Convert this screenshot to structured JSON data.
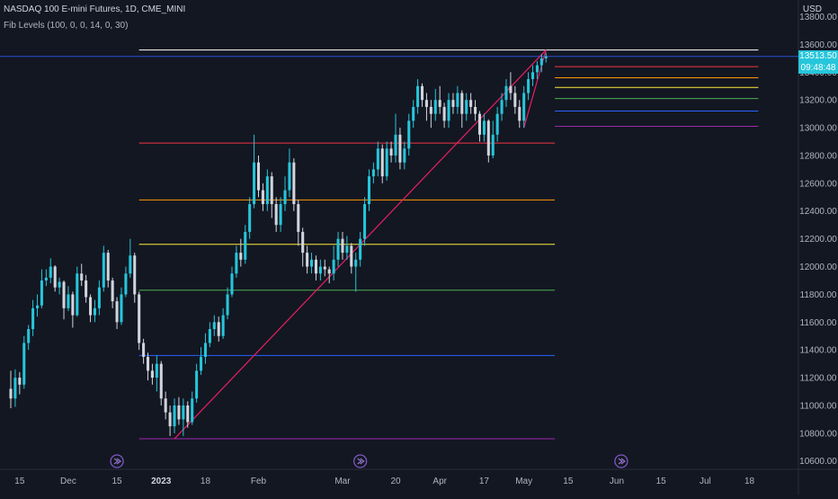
{
  "header": {
    "title": "NASDAQ 100 E-mini Futures, 1D, CME_MINI",
    "indicator": "Fib Levels (100, 0, 0, 14, 0, 30)"
  },
  "price_axis": {
    "currency": "USD",
    "last_price": "13513.50",
    "countdown": "09:48:48"
  },
  "colors": {
    "background": "#131722",
    "candle_up": "#26c6da",
    "candle_down": "#d1d4dc",
    "trend_line": "#e91e63",
    "last_price_line": "#2962ff",
    "price_tag": "#26c6da"
  },
  "chart_data": {
    "type": "candlestick",
    "symbol": "NASDAQ 100 E-mini Futures",
    "interval": "1D",
    "ylim": [
      10540,
      13920
    ],
    "y_ticks": [
      10600,
      10800,
      11000,
      11200,
      11400,
      11600,
      11800,
      12000,
      12200,
      12400,
      12600,
      12800,
      13000,
      13200,
      13400,
      13600,
      13800
    ],
    "x_ticks": [
      {
        "label": "15",
        "bar": -49
      },
      {
        "label": "Dec",
        "bar": -38
      },
      {
        "label": "15",
        "bar": -27
      },
      {
        "label": "2023",
        "bar": -17
      },
      {
        "label": "18",
        "bar": -7
      },
      {
        "label": "Feb",
        "bar": 5
      },
      {
        "label": "Mar",
        "bar": 24
      },
      {
        "label": "20",
        "bar": 36
      },
      {
        "label": "Apr",
        "bar": 46
      },
      {
        "label": "17",
        "bar": 56
      },
      {
        "label": "May",
        "bar": 65
      },
      {
        "label": "15",
        "bar": 75
      },
      {
        "label": "Jun",
        "bar": 86
      },
      {
        "label": "15",
        "bar": 96
      },
      {
        "label": "Jul",
        "bar": 106
      },
      {
        "label": "18",
        "bar": 116
      }
    ],
    "bar_range": [
      -51,
      123
    ],
    "candles": [
      [
        -51,
        11120,
        11050,
        11250,
        10980
      ],
      [
        -50,
        11050,
        11200,
        11260,
        10990
      ],
      [
        -49,
        11200,
        11150,
        11240,
        11080
      ],
      [
        -48,
        11150,
        11450,
        11500,
        11120
      ],
      [
        -47,
        11450,
        11550,
        11580,
        11400
      ],
      [
        -46,
        11550,
        11700,
        11760,
        11500
      ],
      [
        -45,
        11700,
        11720,
        11800,
        11640
      ],
      [
        -44,
        11720,
        11900,
        11980,
        11700
      ],
      [
        -43,
        11900,
        11920,
        11980,
        11860
      ],
      [
        -42,
        11920,
        12000,
        12060,
        11880
      ],
      [
        -41,
        12000,
        11850,
        12010,
        11820
      ],
      [
        -40,
        11850,
        11890,
        11920,
        11800
      ],
      [
        -39,
        11890,
        11700,
        11900,
        11620
      ],
      [
        -38,
        11700,
        11800,
        11860,
        11680
      ],
      [
        -37,
        11800,
        11650,
        11820,
        11560
      ],
      [
        -36,
        11650,
        11950,
        12000,
        11640
      ],
      [
        -35,
        11950,
        11900,
        12020,
        11860
      ],
      [
        -34,
        11900,
        11780,
        11940,
        11740
      ],
      [
        -33,
        11780,
        11650,
        11800,
        11600
      ],
      [
        -32,
        11650,
        11700,
        11760,
        11600
      ],
      [
        -31,
        11700,
        11850,
        11900,
        11650
      ],
      [
        -30,
        11850,
        12100,
        12150,
        11820
      ],
      [
        -29,
        12100,
        11900,
        12120,
        11850
      ],
      [
        -28,
        11900,
        11750,
        11920,
        11700
      ],
      [
        -27,
        11750,
        11600,
        11780,
        11550
      ],
      [
        -26,
        11600,
        11800,
        11850,
        11580
      ],
      [
        -25,
        11800,
        11950,
        12000,
        11780
      ],
      [
        -24,
        11950,
        12080,
        12200,
        11920
      ],
      [
        -23,
        12080,
        11800,
        12100,
        11740
      ],
      [
        -22,
        11800,
        11450,
        11820,
        11400
      ],
      [
        -21,
        11450,
        11350,
        11480,
        11300
      ],
      [
        -20,
        11350,
        11250,
        11380,
        11180
      ],
      [
        -19,
        11250,
        11200,
        11300,
        11150
      ],
      [
        -18,
        11200,
        11300,
        11360,
        11100
      ],
      [
        -17,
        11300,
        11050,
        11320,
        11000
      ],
      [
        -16,
        11050,
        10950,
        11100,
        10900
      ],
      [
        -15,
        10950,
        10850,
        11000,
        10780
      ],
      [
        -14,
        10850,
        11000,
        11050,
        10800
      ],
      [
        -13,
        11000,
        10900,
        11060,
        10860
      ],
      [
        -12,
        10900,
        11000,
        11050,
        10780
      ],
      [
        -11,
        11000,
        10880,
        11030,
        10840
      ],
      [
        -10,
        10880,
        11050,
        11100,
        10860
      ],
      [
        -9,
        11050,
        11250,
        11300,
        11020
      ],
      [
        -8,
        11250,
        11350,
        11420,
        11220
      ],
      [
        -7,
        11350,
        11450,
        11520,
        11300
      ],
      [
        -6,
        11450,
        11550,
        11600,
        11420
      ],
      [
        -5,
        11550,
        11600,
        11650,
        11500
      ],
      [
        -4,
        11600,
        11500,
        11640,
        11460
      ],
      [
        -3,
        11500,
        11650,
        11700,
        11480
      ],
      [
        -2,
        11650,
        11800,
        11850,
        11620
      ],
      [
        -1,
        11800,
        11950,
        12000,
        11780
      ],
      [
        0,
        11950,
        12100,
        12150,
        11920
      ],
      [
        1,
        12100,
        12050,
        12200,
        12000
      ],
      [
        2,
        12050,
        12250,
        12300,
        12020
      ],
      [
        3,
        12250,
        12450,
        12500,
        12200
      ],
      [
        4,
        12450,
        12750,
        12950,
        12420
      ],
      [
        5,
        12750,
        12550,
        12800,
        12500
      ],
      [
        6,
        12550,
        12450,
        12600,
        12400
      ],
      [
        7,
        12450,
        12650,
        12700,
        12400
      ],
      [
        8,
        12650,
        12450,
        12680,
        12350
      ],
      [
        9,
        12450,
        12300,
        12500,
        12250
      ],
      [
        10,
        12300,
        12450,
        12500,
        12250
      ],
      [
        11,
        12450,
        12550,
        12650,
        12400
      ],
      [
        12,
        12550,
        12750,
        12850,
        12500
      ],
      [
        13,
        12750,
        12450,
        12780,
        12400
      ],
      [
        14,
        12450,
        12250,
        12480,
        12150
      ],
      [
        15,
        12250,
        12100,
        12280,
        12000
      ],
      [
        16,
        12100,
        12000,
        12150,
        11950
      ],
      [
        17,
        12000,
        12050,
        12100,
        11950
      ],
      [
        18,
        12050,
        11950,
        12080,
        11900
      ],
      [
        19,
        11950,
        12000,
        12050,
        11900
      ],
      [
        20,
        12000,
        11980,
        12050,
        11930
      ],
      [
        21,
        11980,
        11950,
        12000,
        11880
      ],
      [
        22,
        11950,
        12050,
        12150,
        11900
      ],
      [
        23,
        12050,
        12200,
        12250,
        12000
      ],
      [
        24,
        12200,
        12100,
        12250,
        12050
      ],
      [
        25,
        12100,
        12150,
        12220,
        12050
      ],
      [
        26,
        12150,
        12000,
        12170,
        11950
      ],
      [
        27,
        12000,
        12050,
        12100,
        11820
      ],
      [
        28,
        12050,
        12200,
        12250,
        12000
      ],
      [
        29,
        12200,
        12450,
        12500,
        12150
      ],
      [
        30,
        12450,
        12650,
        12700,
        12400
      ],
      [
        31,
        12650,
        12700,
        12750,
        12600
      ],
      [
        32,
        12700,
        12850,
        12900,
        12650
      ],
      [
        33,
        12850,
        12650,
        12880,
        12600
      ],
      [
        34,
        12650,
        12850,
        12900,
        12620
      ],
      [
        35,
        12850,
        12800,
        12900,
        12750
      ],
      [
        36,
        12800,
        12950,
        13100,
        12750
      ],
      [
        37,
        12950,
        12750,
        13000,
        12700
      ],
      [
        38,
        12750,
        12850,
        12900,
        12700
      ],
      [
        39,
        12850,
        13050,
        13100,
        12800
      ],
      [
        40,
        13050,
        13150,
        13200,
        13000
      ],
      [
        41,
        13150,
        13300,
        13350,
        13100
      ],
      [
        42,
        13300,
        13200,
        13320,
        13150
      ],
      [
        43,
        13200,
        13150,
        13250,
        13050
      ],
      [
        44,
        13150,
        13100,
        13200,
        13000
      ],
      [
        45,
        13100,
        13200,
        13280,
        13050
      ],
      [
        46,
        13200,
        13150,
        13300,
        13100
      ],
      [
        47,
        13150,
        13050,
        13180,
        13000
      ],
      [
        48,
        13050,
        13200,
        13250,
        13000
      ],
      [
        49,
        13200,
        13150,
        13250,
        13100
      ],
      [
        50,
        13150,
        13250,
        13300,
        13100
      ],
      [
        51,
        13250,
        13100,
        13270,
        13000
      ],
      [
        52,
        13100,
        13200,
        13250,
        13050
      ],
      [
        53,
        13200,
        13150,
        13250,
        13100
      ],
      [
        54,
        13150,
        13100,
        13200,
        13050
      ],
      [
        55,
        13100,
        12950,
        13120,
        12900
      ],
      [
        56,
        12950,
        13050,
        13100,
        12900
      ],
      [
        57,
        13050,
        12800,
        13060,
        12750
      ],
      [
        58,
        12800,
        12950,
        13050,
        12780
      ],
      [
        59,
        12950,
        13100,
        13150,
        12900
      ],
      [
        60,
        13100,
        13200,
        13250,
        13050
      ],
      [
        61,
        13200,
        13300,
        13350,
        13150
      ],
      [
        62,
        13300,
        13250,
        13400,
        13200
      ],
      [
        63,
        13250,
        13150,
        13300,
        13100
      ],
      [
        64,
        13150,
        13050,
        13200,
        13000
      ],
      [
        65,
        13050,
        13250,
        13300,
        13000
      ],
      [
        66,
        13250,
        13350,
        13400,
        13200
      ],
      [
        67,
        13350,
        13400,
        13450,
        13300
      ],
      [
        68,
        13400,
        13450,
        13480,
        13350
      ],
      [
        69,
        13450,
        13500,
        13530,
        13400
      ],
      [
        70,
        13500,
        13513.5,
        13540,
        13470
      ]
    ],
    "last_price": 13513.5,
    "trend_lines": [
      {
        "from": [
          -14,
          10760
        ],
        "to": [
          70,
          13560
        ]
      },
      {
        "from": [
          65,
          13000
        ],
        "to": [
          70,
          13560
        ]
      }
    ],
    "fib_levels": [
      {
        "price": 13560,
        "color": "#ffffff",
        "from_bar": -22,
        "to_bar": 118
      },
      {
        "price": 12890,
        "color": "#f23645",
        "from_bar": -22,
        "to_bar": 72
      },
      {
        "price": 12480,
        "color": "#ff9800",
        "from_bar": -22,
        "to_bar": 72
      },
      {
        "price": 12160,
        "color": "#ffeb3b",
        "from_bar": -22,
        "to_bar": 72
      },
      {
        "price": 11830,
        "color": "#4caf50",
        "from_bar": -22,
        "to_bar": 72
      },
      {
        "price": 11360,
        "color": "#2962ff",
        "from_bar": -22,
        "to_bar": 72
      },
      {
        "price": 10760,
        "color": "#9c27b0",
        "from_bar": -22,
        "to_bar": 72
      },
      {
        "price": 13440,
        "color": "#f23645",
        "from_bar": 72,
        "to_bar": 118
      },
      {
        "price": 13360,
        "color": "#ff9800",
        "from_bar": 72,
        "to_bar": 118
      },
      {
        "price": 13290,
        "color": "#ffeb3b",
        "from_bar": 72,
        "to_bar": 118
      },
      {
        "price": 13210,
        "color": "#4caf50",
        "from_bar": 72,
        "to_bar": 118
      },
      {
        "price": 13120,
        "color": "#2962ff",
        "from_bar": 72,
        "to_bar": 118
      },
      {
        "price": 13010,
        "color": "#9c27b0",
        "from_bar": 72,
        "to_bar": 118
      }
    ],
    "event_markers": [
      -27,
      28,
      87
    ]
  }
}
